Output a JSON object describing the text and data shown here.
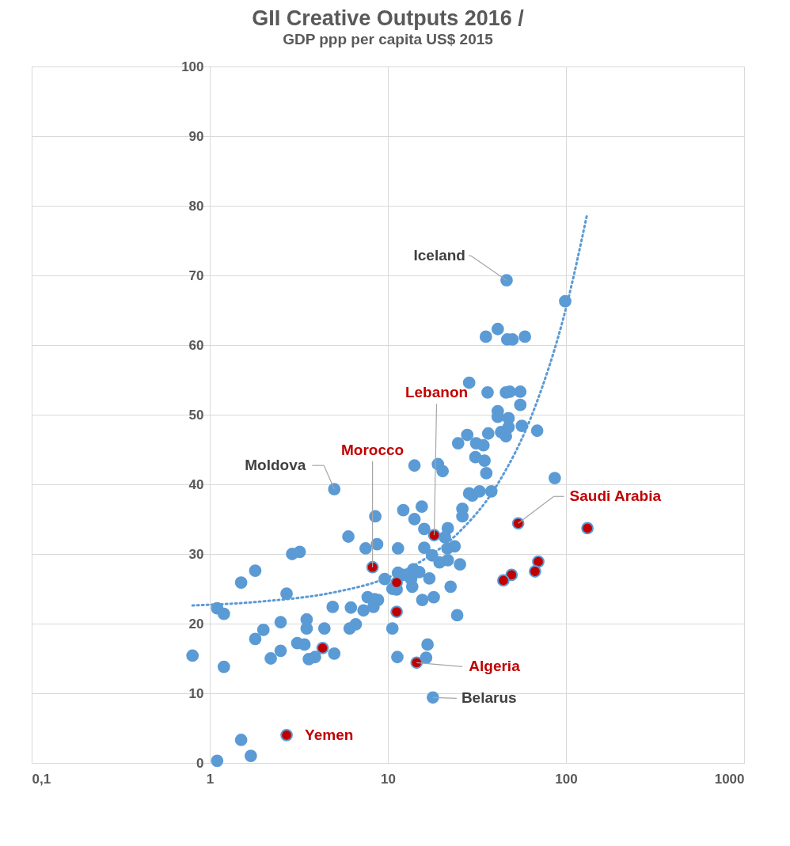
{
  "chart_data": {
    "type": "scatter",
    "title": "GII Creative Outputs 2016 /",
    "subtitle": "GDP ppp per capita US$ 2015",
    "log": "x",
    "grid": true,
    "marker": "circle",
    "xlim": [
      0.1,
      1000
    ],
    "xticks": [
      {
        "value": 0.1,
        "label": "0,1"
      },
      1,
      10,
      100,
      1000
    ],
    "ylim": [
      0,
      100
    ],
    "yticks": [
      0,
      10,
      20,
      30,
      40,
      50,
      60,
      70,
      80,
      90,
      100
    ],
    "series": [
      {
        "color": "#5b9bd5",
        "x": [
          5.0,
          8.5,
          6.0,
          2.9,
          3.2,
          8.7,
          7.5,
          11.4,
          1.8,
          1.5,
          2.7,
          9.6,
          1.1,
          1.2,
          4.9,
          6.2,
          7.3,
          7.7,
          8.4,
          8.8,
          8.3,
          11.2,
          10.6,
          11.4,
          2.5,
          2.0,
          1.8,
          3.5,
          3.5,
          4.4,
          6.1,
          6.6,
          10.6,
          3.1,
          3.4,
          2.5,
          2.2,
          3.6,
          3.9,
          5.0,
          11.3,
          0.8,
          1.2,
          1.5,
          1.7,
          1.1,
          28.6,
          36.3,
          46.0,
          48.4,
          55.4,
          55.4,
          41.4,
          41.4,
          47.6,
          47.6,
          56.5,
          43.2,
          46.0,
          68.9,
          36.6,
          27.9,
          24.8,
          31.3,
          34.4,
          31.0,
          34.9,
          35.7,
          14.1,
          19.1,
          20.3,
          86.5,
          28.6,
          32.7,
          38.1,
          29.8,
          26.2,
          26.2,
          15.5,
          12.2,
          14.1,
          16.0,
          21.7,
          20.9,
          16.0,
          17.7,
          21.6,
          23.7,
          19.5,
          21.7,
          25.4,
          13.9,
          15.0,
          12.2,
          17.1,
          13.5,
          13.7,
          22.5,
          15.6,
          18.1,
          24.5,
          16.7,
          16.4,
          17.9,
          46.4,
          99,
          35.5,
          41.4,
          46.8,
          50.1,
          58.8
        ],
        "values": [
          39.3,
          35.4,
          32.5,
          30.0,
          30.3,
          31.4,
          30.8,
          30.8,
          27.6,
          25.9,
          24.3,
          26.4,
          22.2,
          21.4,
          22.4,
          22.3,
          21.9,
          23.8,
          23.5,
          23.4,
          22.4,
          24.9,
          25.0,
          27.3,
          20.2,
          19.1,
          17.8,
          20.6,
          19.3,
          19.3,
          19.3,
          19.9,
          19.3,
          17.2,
          17.0,
          16.1,
          15.0,
          14.9,
          15.2,
          15.7,
          15.2,
          15.4,
          13.8,
          3.3,
          1.0,
          0.3,
          54.6,
          53.2,
          53.2,
          53.3,
          53.3,
          51.4,
          50.5,
          49.7,
          49.5,
          48.2,
          48.4,
          47.5,
          46.9,
          47.7,
          47.3,
          47.1,
          45.9,
          45.9,
          45.6,
          43.9,
          43.4,
          41.6,
          42.7,
          42.9,
          41.9,
          40.9,
          38.7,
          39.0,
          39.0,
          38.4,
          36.5,
          35.4,
          36.8,
          36.3,
          35.0,
          33.6,
          33.7,
          32.4,
          30.9,
          29.8,
          30.8,
          31.1,
          28.8,
          29.1,
          28.5,
          27.8,
          27.4,
          27.0,
          26.5,
          26.4,
          25.3,
          25.3,
          23.4,
          23.8,
          21.2,
          17.0,
          15.1,
          9.4,
          69.3,
          66.3,
          61.2,
          62.3,
          60.8,
          60.8,
          61.2
        ]
      },
      {
        "color": "#c00000",
        "x": [
          8.2,
          11.2,
          11.2,
          4.3,
          2.7,
          18.2,
          53.9,
          14.5,
          132,
          69.9,
          67.0,
          49.5,
          44.5
        ],
        "values": [
          28.1,
          25.9,
          21.7,
          16.5,
          4.0,
          32.7,
          34.4,
          14.4,
          33.7,
          28.9,
          27.5,
          27.0,
          26.2
        ]
      },
      {
        "type": "line",
        "color": "#5b9bd5",
        "line_style": "dotted",
        "marker": "none",
        "x": [
          0.8,
          2,
          5,
          10,
          15.7,
          25,
          41,
          67,
          100,
          131
        ],
        "values": [
          22.6,
          23.2,
          24.5,
          26.6,
          29.1,
          33.1,
          39.9,
          51.1,
          65.3,
          78.6
        ]
      }
    ],
    "annotations": [
      {
        "text": "Iceland",
        "x": 46.4,
        "y": 69.3
      },
      {
        "text": "Moldova",
        "x": 5.0,
        "y": 39.3
      },
      {
        "text": "Morocco",
        "x": 8.2,
        "y": 28.1
      },
      {
        "text": "Lebanon",
        "x": 18.2,
        "y": 32.7
      },
      {
        "text": "Saudi Arabia",
        "x": 53.9,
        "y": 34.4
      },
      {
        "text": "Algeria",
        "x": 14.5,
        "y": 14.4
      },
      {
        "text": "Belarus",
        "x": 17.9,
        "y": 9.4
      },
      {
        "text": "Yemen",
        "x": 2.7,
        "y": 4.0
      }
    ]
  }
}
